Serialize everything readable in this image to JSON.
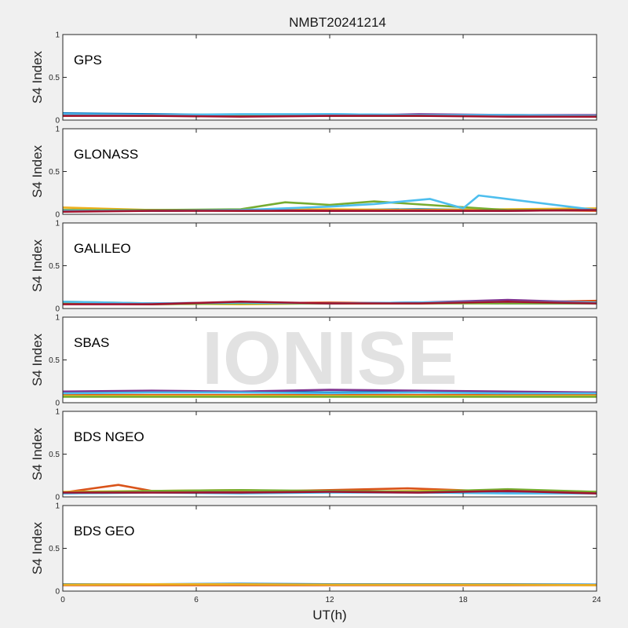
{
  "figure": {
    "title": "NMBT20241214",
    "xlabel": "UT(h)",
    "watermark": "IONISE"
  },
  "chart_data": {
    "type": "line",
    "x_range": [
      0,
      24
    ],
    "x_ticks": [
      0,
      6,
      12,
      18,
      24
    ],
    "x_tick_labels": [
      "0",
      "6",
      "12",
      "18",
      "24"
    ],
    "ylabel": "S4 Index",
    "ylim": [
      0,
      1
    ],
    "y_ticks": [
      0,
      0.5,
      1
    ],
    "y_tick_labels": [
      "0",
      "0.5",
      "1"
    ],
    "grid": false,
    "series_colors": [
      "#0072bd",
      "#d95319",
      "#edb120",
      "#7e2f8e",
      "#77ac30",
      "#4dbeee",
      "#a2142f"
    ],
    "panels": [
      {
        "label": "GPS",
        "series": [
          {
            "x": [
              0,
              4,
              8,
              12,
              16,
              20,
              24
            ],
            "values": [
              0.08,
              0.07,
              0.06,
              0.07,
              0.06,
              0.06,
              0.05
            ]
          },
          {
            "x": [
              0,
              4,
              8,
              12,
              16,
              20,
              24
            ],
            "values": [
              0.06,
              0.05,
              0.05,
              0.05,
              0.06,
              0.05,
              0.04
            ]
          },
          {
            "x": [
              0,
              4,
              8,
              12,
              16,
              20,
              24
            ],
            "values": [
              0.05,
              0.06,
              0.05,
              0.06,
              0.05,
              0.06,
              0.05
            ]
          },
          {
            "x": [
              0,
              4,
              8,
              12,
              16,
              20,
              24
            ],
            "values": [
              0.07,
              0.06,
              0.06,
              0.05,
              0.07,
              0.06,
              0.06
            ]
          },
          {
            "x": [
              0,
              4,
              8,
              12,
              16,
              20,
              24
            ],
            "values": [
              0.06,
              0.05,
              0.06,
              0.05,
              0.05,
              0.05,
              0.05
            ]
          },
          {
            "x": [
              0,
              4,
              8,
              12,
              16,
              20,
              24
            ],
            "values": [
              0.07,
              0.06,
              0.07,
              0.07,
              0.06,
              0.06,
              0.05
            ]
          },
          {
            "x": [
              0,
              4,
              8,
              12,
              16,
              20,
              24
            ],
            "values": [
              0.05,
              0.05,
              0.04,
              0.05,
              0.05,
              0.04,
              0.04
            ]
          }
        ]
      },
      {
        "label": "GLONASS",
        "series": [
          {
            "x": [
              0,
              4,
              8,
              12,
              16,
              20,
              24
            ],
            "values": [
              0.05,
              0.04,
              0.05,
              0.05,
              0.06,
              0.05,
              0.05
            ]
          },
          {
            "x": [
              0,
              4,
              8,
              12,
              16,
              20,
              24
            ],
            "values": [
              0.05,
              0.05,
              0.04,
              0.04,
              0.05,
              0.05,
              0.04
            ]
          },
          {
            "x": [
              0,
              4,
              8,
              12,
              16,
              20,
              24
            ],
            "values": [
              0.08,
              0.05,
              0.05,
              0.06,
              0.05,
              0.06,
              0.07
            ]
          },
          {
            "x": [
              0,
              4,
              8,
              12,
              16,
              20,
              24
            ],
            "values": [
              0.04,
              0.04,
              0.05,
              0.04,
              0.04,
              0.04,
              0.05
            ]
          },
          {
            "x": [
              0,
              4,
              8,
              10,
              12,
              14,
              20,
              24
            ],
            "values": [
              0.05,
              0.05,
              0.06,
              0.14,
              0.11,
              0.15,
              0.05,
              0.05
            ]
          },
          {
            "x": [
              0,
              4,
              8,
              12,
              14,
              16.5,
              18,
              18.7,
              24
            ],
            "values": [
              0.04,
              0.04,
              0.05,
              0.09,
              0.12,
              0.18,
              0.07,
              0.22,
              0.05
            ]
          },
          {
            "x": [
              0,
              4,
              8,
              12,
              16,
              20,
              24
            ],
            "values": [
              0.03,
              0.04,
              0.04,
              0.04,
              0.04,
              0.04,
              0.05
            ]
          }
        ]
      },
      {
        "label": "GALILEO",
        "series": [
          {
            "x": [
              0,
              4,
              8,
              12,
              16,
              20,
              24
            ],
            "values": [
              0.07,
              0.06,
              0.06,
              0.06,
              0.07,
              0.06,
              0.06
            ]
          },
          {
            "x": [
              0,
              4,
              8,
              12,
              16,
              20,
              24
            ],
            "values": [
              0.06,
              0.05,
              0.06,
              0.07,
              0.06,
              0.07,
              0.09
            ]
          },
          {
            "x": [
              0,
              4,
              8,
              12,
              16,
              20,
              24
            ],
            "values": [
              0.08,
              0.06,
              0.05,
              0.06,
              0.06,
              0.07,
              0.07
            ]
          },
          {
            "x": [
              0,
              4,
              8,
              12,
              16,
              20,
              24
            ],
            "values": [
              0.07,
              0.06,
              0.07,
              0.06,
              0.07,
              0.1,
              0.07
            ]
          },
          {
            "x": [
              0,
              4,
              8,
              12,
              16,
              20,
              24
            ],
            "values": [
              0.06,
              0.05,
              0.06,
              0.06,
              0.06,
              0.06,
              0.06
            ]
          },
          {
            "x": [
              0,
              4,
              8,
              12,
              16,
              20,
              24
            ],
            "values": [
              0.08,
              0.06,
              0.07,
              0.06,
              0.07,
              0.08,
              0.07
            ]
          },
          {
            "x": [
              0,
              4,
              8,
              12,
              16,
              20,
              24
            ],
            "values": [
              0.05,
              0.05,
              0.08,
              0.06,
              0.06,
              0.08,
              0.06
            ]
          }
        ]
      },
      {
        "label": "SBAS",
        "series": [
          {
            "x": [
              0,
              4,
              8,
              12,
              16,
              20,
              24
            ],
            "values": [
              0.12,
              0.13,
              0.13,
              0.12,
              0.13,
              0.12,
              0.12
            ]
          },
          {
            "x": [
              0,
              4,
              8,
              12,
              16,
              20,
              24
            ],
            "values": [
              0.09,
              0.09,
              0.09,
              0.09,
              0.09,
              0.09,
              0.09
            ]
          },
          {
            "x": [
              0,
              4,
              8,
              12,
              16,
              20,
              24
            ],
            "values": [
              0.08,
              0.08,
              0.08,
              0.08,
              0.08,
              0.08,
              0.08
            ]
          },
          {
            "x": [
              0,
              4,
              8,
              12,
              16,
              20,
              24
            ],
            "values": [
              0.13,
              0.14,
              0.13,
              0.15,
              0.14,
              0.13,
              0.12
            ]
          },
          {
            "x": [
              0,
              4,
              8,
              12,
              16,
              20,
              24
            ],
            "values": [
              0.07,
              0.07,
              0.07,
              0.07,
              0.07,
              0.07,
              0.07
            ]
          },
          {
            "x": [
              0,
              4,
              8,
              12,
              16,
              20,
              24
            ],
            "values": [
              0.11,
              0.12,
              0.12,
              0.11,
              0.12,
              0.11,
              0.11
            ]
          }
        ]
      },
      {
        "label": "BDS NGEO",
        "series": [
          {
            "x": [
              0,
              4,
              8,
              12,
              16,
              20,
              24
            ],
            "values": [
              0.05,
              0.06,
              0.06,
              0.07,
              0.06,
              0.07,
              0.05
            ]
          },
          {
            "x": [
              0,
              2.5,
              4,
              8,
              12,
              15.5,
              20,
              24
            ],
            "values": [
              0.05,
              0.14,
              0.07,
              0.06,
              0.08,
              0.1,
              0.06,
              0.05
            ]
          },
          {
            "x": [
              0,
              4,
              8,
              12,
              16,
              20,
              24
            ],
            "values": [
              0.06,
              0.07,
              0.08,
              0.06,
              0.07,
              0.08,
              0.06
            ]
          },
          {
            "x": [
              0,
              4,
              8,
              12,
              16,
              20,
              24
            ],
            "values": [
              0.04,
              0.06,
              0.05,
              0.07,
              0.05,
              0.06,
              0.05
            ]
          },
          {
            "x": [
              0,
              4,
              8,
              12,
              16,
              20,
              24
            ],
            "values": [
              0.05,
              0.07,
              0.08,
              0.07,
              0.06,
              0.09,
              0.06
            ]
          },
          {
            "x": [
              0,
              4,
              8,
              12,
              16,
              20,
              24
            ],
            "values": [
              0.04,
              0.05,
              0.04,
              0.05,
              0.05,
              0.04,
              0.04
            ]
          },
          {
            "x": [
              0,
              4,
              8,
              12,
              16,
              20,
              24
            ],
            "values": [
              0.05,
              0.05,
              0.05,
              0.06,
              0.05,
              0.07,
              0.04
            ]
          }
        ]
      },
      {
        "label": "BDS GEO",
        "series": [
          {
            "x": [
              0,
              4,
              8,
              12,
              16,
              20,
              24
            ],
            "values": [
              0.08,
              0.08,
              0.085,
              0.08,
              0.08,
              0.08,
              0.075
            ]
          },
          {
            "x": [
              0,
              4,
              8,
              12,
              16,
              20,
              24
            ],
            "values": [
              0.07,
              0.07,
              0.07,
              0.07,
              0.07,
              0.07,
              0.07
            ]
          },
          {
            "x": [
              0,
              4,
              8,
              12,
              16,
              20,
              24
            ],
            "values": [
              0.075,
              0.08,
              0.08,
              0.075,
              0.075,
              0.075,
              0.07
            ]
          }
        ]
      }
    ]
  }
}
